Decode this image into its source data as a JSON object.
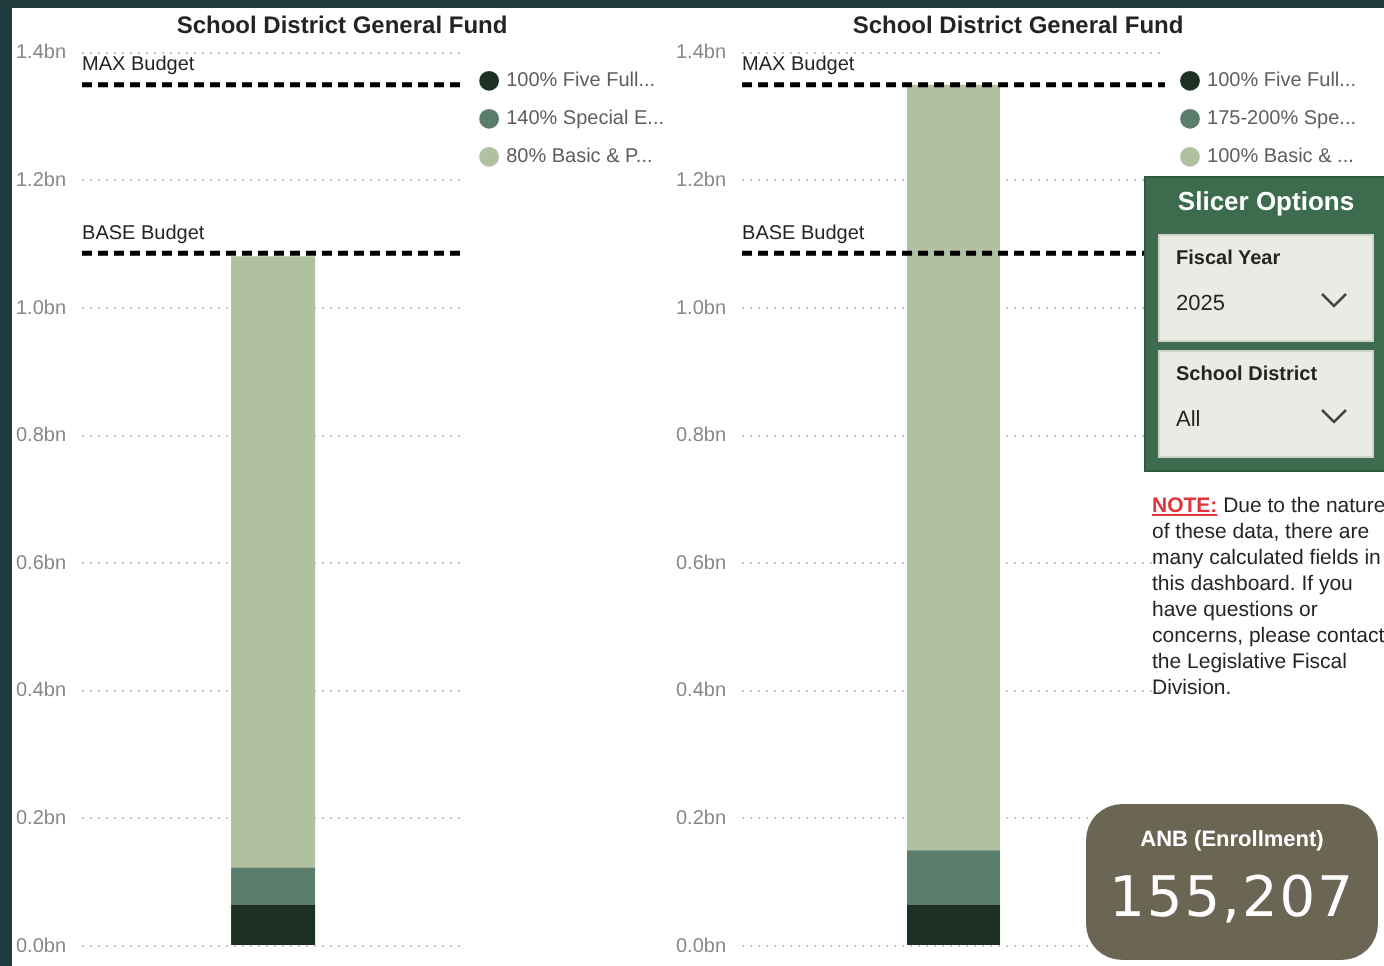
{
  "chart_data": [
    {
      "type": "bar",
      "title": "School District General Fund",
      "stacked": true,
      "categories": [
        null
      ],
      "series": [
        {
          "name": "100% Five Full...",
          "color": "#1c3024",
          "values": [
            0.065
          ]
        },
        {
          "name": "140% Special E...",
          "color": "#5a7d6c",
          "values": [
            0.058
          ]
        },
        {
          "name": "80% Basic & P...",
          "color": "#b0c1a0",
          "values": [
            0.958
          ]
        }
      ],
      "ylim": [
        0,
        1.4
      ],
      "yticks": [
        {
          "value": 0,
          "label": "0.0bn"
        },
        {
          "value": 0.2,
          "label": "0.2bn"
        },
        {
          "value": 0.4,
          "label": "0.4bn"
        },
        {
          "value": 0.6,
          "label": "0.6bn"
        },
        {
          "value": 0.8,
          "label": "0.8bn"
        },
        {
          "value": 1.0,
          "label": "1.0bn"
        },
        {
          "value": 1.2,
          "label": "1.2bn"
        },
        {
          "value": 1.4,
          "label": "1.4bn"
        }
      ],
      "grid": "y",
      "legend": "top right",
      "tick_labels": "y",
      "ref_lines": [
        {
          "axis": "y",
          "value": 1.35,
          "label": "MAX Budget",
          "color": "#000000",
          "line_style": "dashed"
        },
        {
          "axis": "y",
          "value": 1.086,
          "label": "BASE Budget",
          "color": "#000000",
          "line_style": "dashed"
        }
      ]
    },
    {
      "type": "bar",
      "title": "School District General Fund",
      "stacked": true,
      "categories": [
        null
      ],
      "series": [
        {
          "name": "100% Five Full...",
          "color": "#1c3024",
          "values": [
            0.065
          ]
        },
        {
          "name": "175-200% Spe...",
          "color": "#5a7d6c",
          "values": [
            0.085
          ]
        },
        {
          "name": "100% Basic & ...",
          "color": "#b0c1a0",
          "values": [
            1.2
          ]
        }
      ],
      "ylim": [
        0,
        1.4
      ],
      "yticks": [
        {
          "value": 0,
          "label": "0.0bn"
        },
        {
          "value": 0.2,
          "label": "0.2bn"
        },
        {
          "value": 0.4,
          "label": "0.4bn"
        },
        {
          "value": 0.6,
          "label": "0.6bn"
        },
        {
          "value": 0.8,
          "label": "0.8bn"
        },
        {
          "value": 1.0,
          "label": "1.0bn"
        },
        {
          "value": 1.2,
          "label": "1.2bn"
        },
        {
          "value": 1.4,
          "label": "1.4bn"
        }
      ],
      "grid": "y",
      "legend": "top right",
      "tick_labels": "y",
      "ref_lines": [
        {
          "axis": "y",
          "value": 1.35,
          "label": "MAX Budget",
          "color": "#000000",
          "line_style": "dashed"
        },
        {
          "axis": "y",
          "value": 1.086,
          "label": "BASE Budget",
          "color": "#000000",
          "line_style": "dashed"
        }
      ]
    },
    {
      "type": "other",
      "title": "Slicer Options",
      "annotations": [
        "Fiscal Year",
        "2025",
        "School District",
        "All",
        "NOTE:",
        "Due to the nature of these data, there are many calculated fields in this dashboard.  If you have questions or concerns, please contact the Legislative Fiscal Division."
      ]
    },
    {
      "type": "other",
      "title": "ANB (Enrollment)",
      "annotations": [
        "155,207"
      ]
    }
  ]
}
